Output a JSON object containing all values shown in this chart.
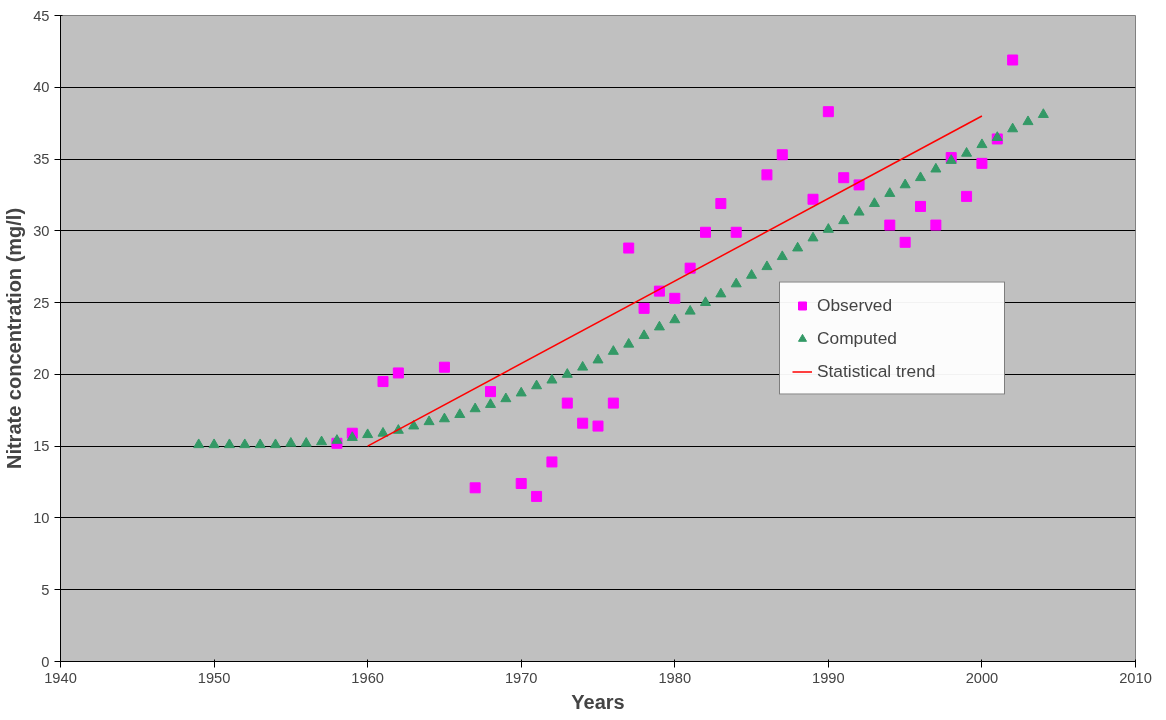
{
  "chart_data": {
    "type": "scatter",
    "xlabel": "Years",
    "ylabel": "Nitrate concentration (mg/l)",
    "xlim": [
      1940,
      2010
    ],
    "xticks": [
      1940,
      1950,
      1960,
      1970,
      1980,
      1990,
      2000,
      2010
    ],
    "ylim": [
      0,
      45
    ],
    "yticks": [
      0,
      5,
      10,
      15,
      20,
      25,
      30,
      35,
      40,
      45
    ],
    "grid": "y",
    "legend": "right",
    "series": [
      {
        "name": "Observed",
        "marker": "square",
        "color": "#ff00ff",
        "x": [
          1958,
          1959,
          1961,
          1962,
          1965,
          1967,
          1968,
          1970,
          1971,
          1972,
          1973,
          1974,
          1975,
          1976,
          1977,
          1978,
          1979,
          1980,
          1981,
          1982,
          1983,
          1984,
          1986,
          1987,
          1989,
          1990,
          1991,
          1992,
          1994,
          1995,
          1996,
          1997,
          1998,
          1999,
          2000,
          2001,
          2002
        ],
        "values": [
          15.2,
          15.9,
          19.5,
          20.1,
          20.5,
          12.1,
          18.8,
          12.4,
          11.5,
          13.9,
          18.0,
          16.6,
          16.4,
          18.0,
          28.8,
          24.6,
          25.8,
          25.3,
          27.4,
          29.9,
          31.9,
          29.9,
          33.9,
          35.3,
          32.2,
          38.3,
          33.7,
          33.2,
          30.4,
          29.2,
          31.7,
          30.4,
          35.1,
          32.4,
          34.7,
          36.4,
          41.9
        ]
      },
      {
        "name": "Computed",
        "marker": "triangle",
        "color": "#339966",
        "x": [
          1949,
          1950,
          1951,
          1952,
          1953,
          1954,
          1955,
          1956,
          1957,
          1958,
          1959,
          1960,
          1961,
          1962,
          1963,
          1964,
          1965,
          1966,
          1967,
          1968,
          1969,
          1970,
          1971,
          1972,
          1973,
          1974,
          1975,
          1976,
          1977,
          1978,
          1979,
          1980,
          1981,
          1982,
          1983,
          1984,
          1985,
          1986,
          1987,
          1988,
          1989,
          1990,
          1991,
          1992,
          1993,
          1994,
          1995,
          1996,
          1997,
          1998,
          1999,
          2000,
          2001,
          2002,
          2003,
          2004
        ],
        "values": [
          15.1,
          15.1,
          15.1,
          15.1,
          15.1,
          15.1,
          15.2,
          15.2,
          15.3,
          15.4,
          15.6,
          15.8,
          15.9,
          16.1,
          16.4,
          16.7,
          16.9,
          17.2,
          17.6,
          17.9,
          18.3,
          18.7,
          19.2,
          19.6,
          20.0,
          20.5,
          21.0,
          21.6,
          22.1,
          22.7,
          23.3,
          23.8,
          24.4,
          25.0,
          25.6,
          26.3,
          26.9,
          27.5,
          28.2,
          28.8,
          29.5,
          30.1,
          30.7,
          31.3,
          31.9,
          32.6,
          33.2,
          33.7,
          34.3,
          34.9,
          35.4,
          36.0,
          36.5,
          37.1,
          37.6,
          38.1
        ]
      },
      {
        "name": "Statistical trend",
        "type": "line",
        "line_style": "solid",
        "color": "#ff0000",
        "x": [
          1960,
          2000
        ],
        "values": [
          15,
          38
        ]
      }
    ]
  }
}
